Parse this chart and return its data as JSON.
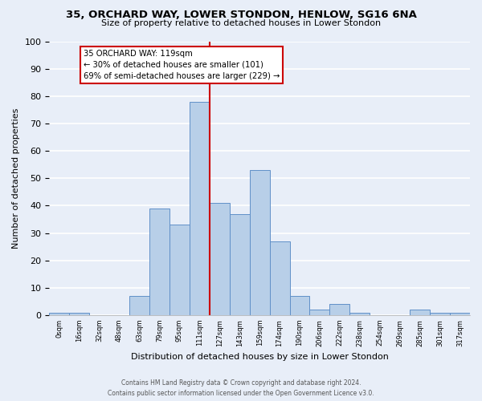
{
  "title": "35, ORCHARD WAY, LOWER STONDON, HENLOW, SG16 6NA",
  "subtitle": "Size of property relative to detached houses in Lower Stondon",
  "xlabel": "Distribution of detached houses by size in Lower Stondon",
  "ylabel": "Number of detached properties",
  "bar_labels": [
    "0sqm",
    "16sqm",
    "32sqm",
    "48sqm",
    "63sqm",
    "79sqm",
    "95sqm",
    "111sqm",
    "127sqm",
    "143sqm",
    "159sqm",
    "174sqm",
    "190sqm",
    "206sqm",
    "222sqm",
    "238sqm",
    "254sqm",
    "269sqm",
    "285sqm",
    "301sqm",
    "317sqm"
  ],
  "bar_heights": [
    1,
    1,
    0,
    0,
    7,
    39,
    33,
    78,
    41,
    37,
    53,
    27,
    7,
    2,
    4,
    1,
    0,
    0,
    2,
    1,
    1
  ],
  "bar_color": "#b8cfe8",
  "bar_edge_color": "#6090c8",
  "background_color": "#e8eef8",
  "grid_color": "#ffffff",
  "vline_x_index": 7,
  "vline_color": "#cc0000",
  "annotation_text": "35 ORCHARD WAY: 119sqm\n← 30% of detached houses are smaller (101)\n69% of semi-detached houses are larger (229) →",
  "annotation_box_color": "#ffffff",
  "annotation_box_edge_color": "#cc0000",
  "footer1": "Contains HM Land Registry data © Crown copyright and database right 2024.",
  "footer2": "Contains public sector information licensed under the Open Government Licence v3.0.",
  "ylim": [
    0,
    100
  ],
  "yticks": [
    0,
    10,
    20,
    30,
    40,
    50,
    60,
    70,
    80,
    90,
    100
  ]
}
